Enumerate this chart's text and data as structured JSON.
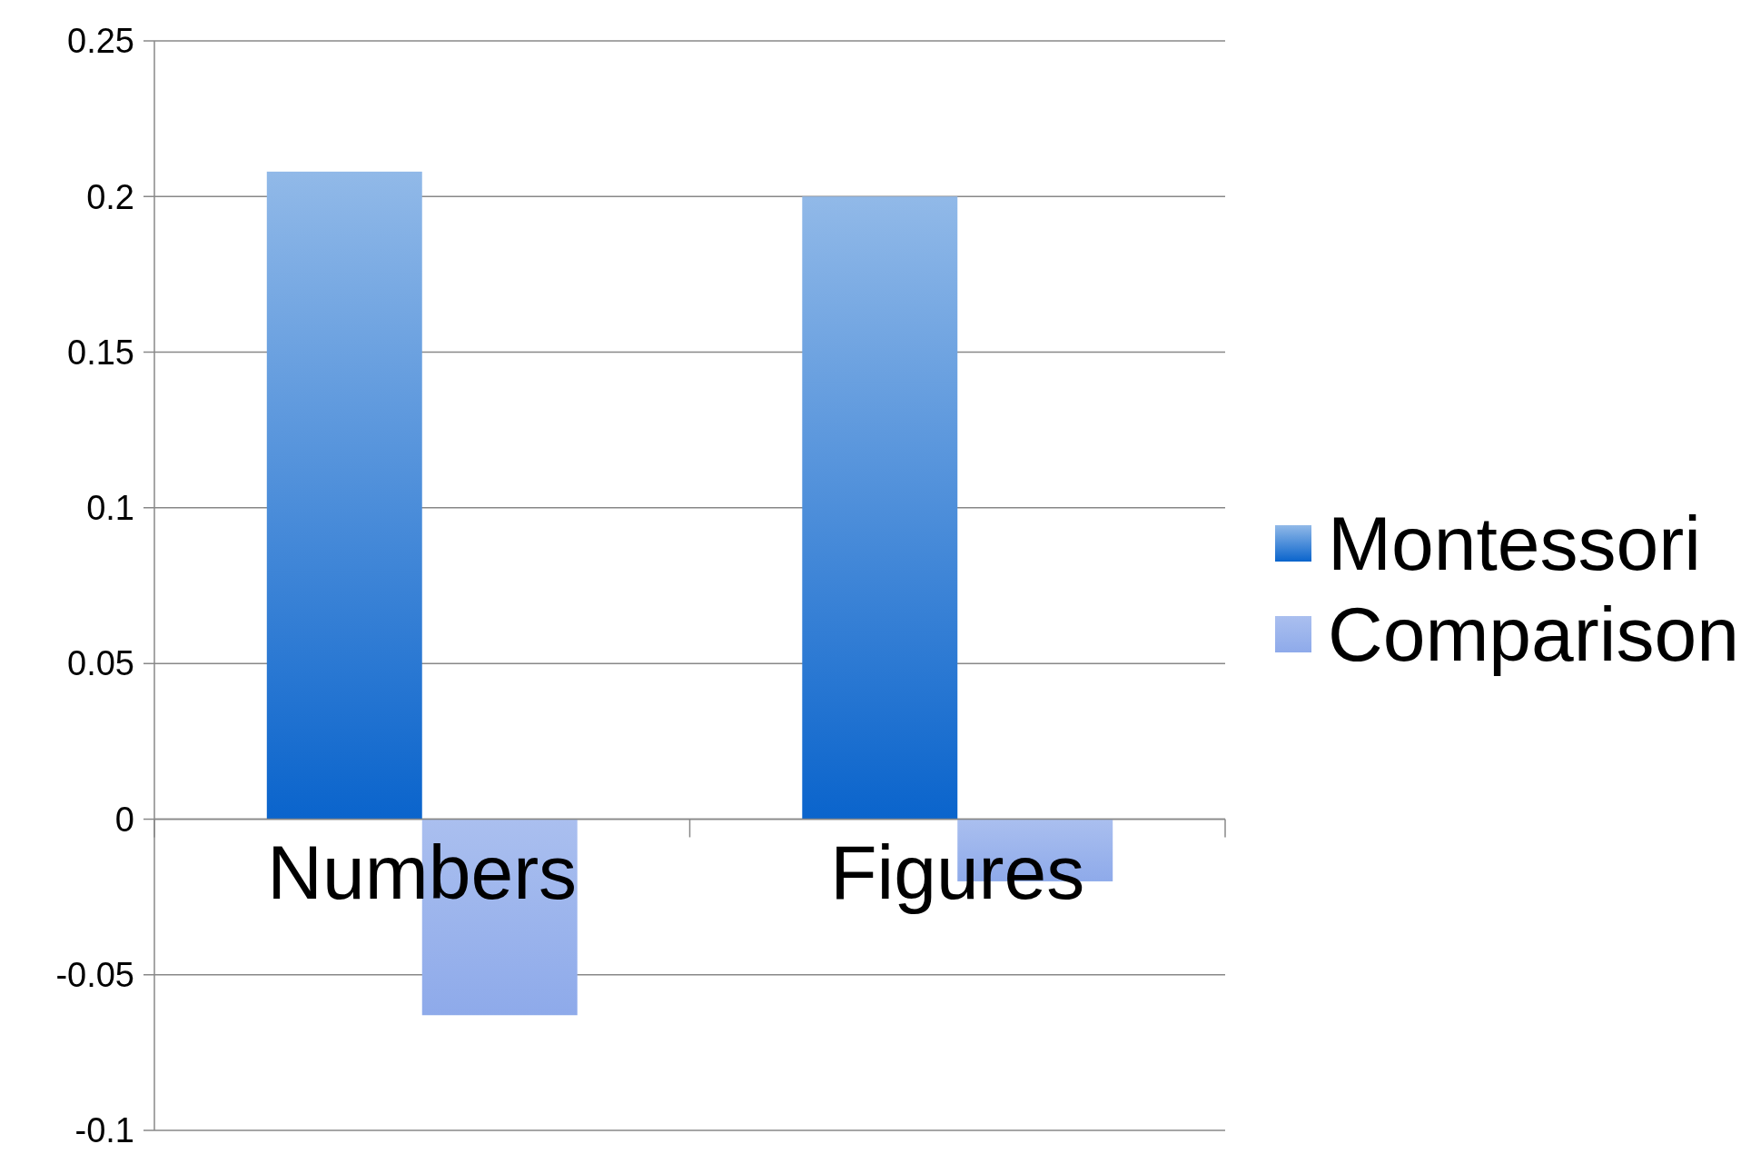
{
  "chart_data": {
    "type": "bar",
    "categories": [
      "Numbers",
      "Figures"
    ],
    "series": [
      {
        "name": "Montessori",
        "color": "#0a64cc",
        "values": [
          0.208,
          0.2
        ]
      },
      {
        "name": "Comparison",
        "color": "#8eaaea",
        "values": [
          -0.063,
          -0.02
        ]
      }
    ],
    "ylim": [
      -0.1,
      0.25
    ],
    "yticks": [
      -0.1,
      -0.05,
      0,
      0.05,
      0.1,
      0.15,
      0.2,
      0.25
    ],
    "grid": "y",
    "legend": "right"
  }
}
